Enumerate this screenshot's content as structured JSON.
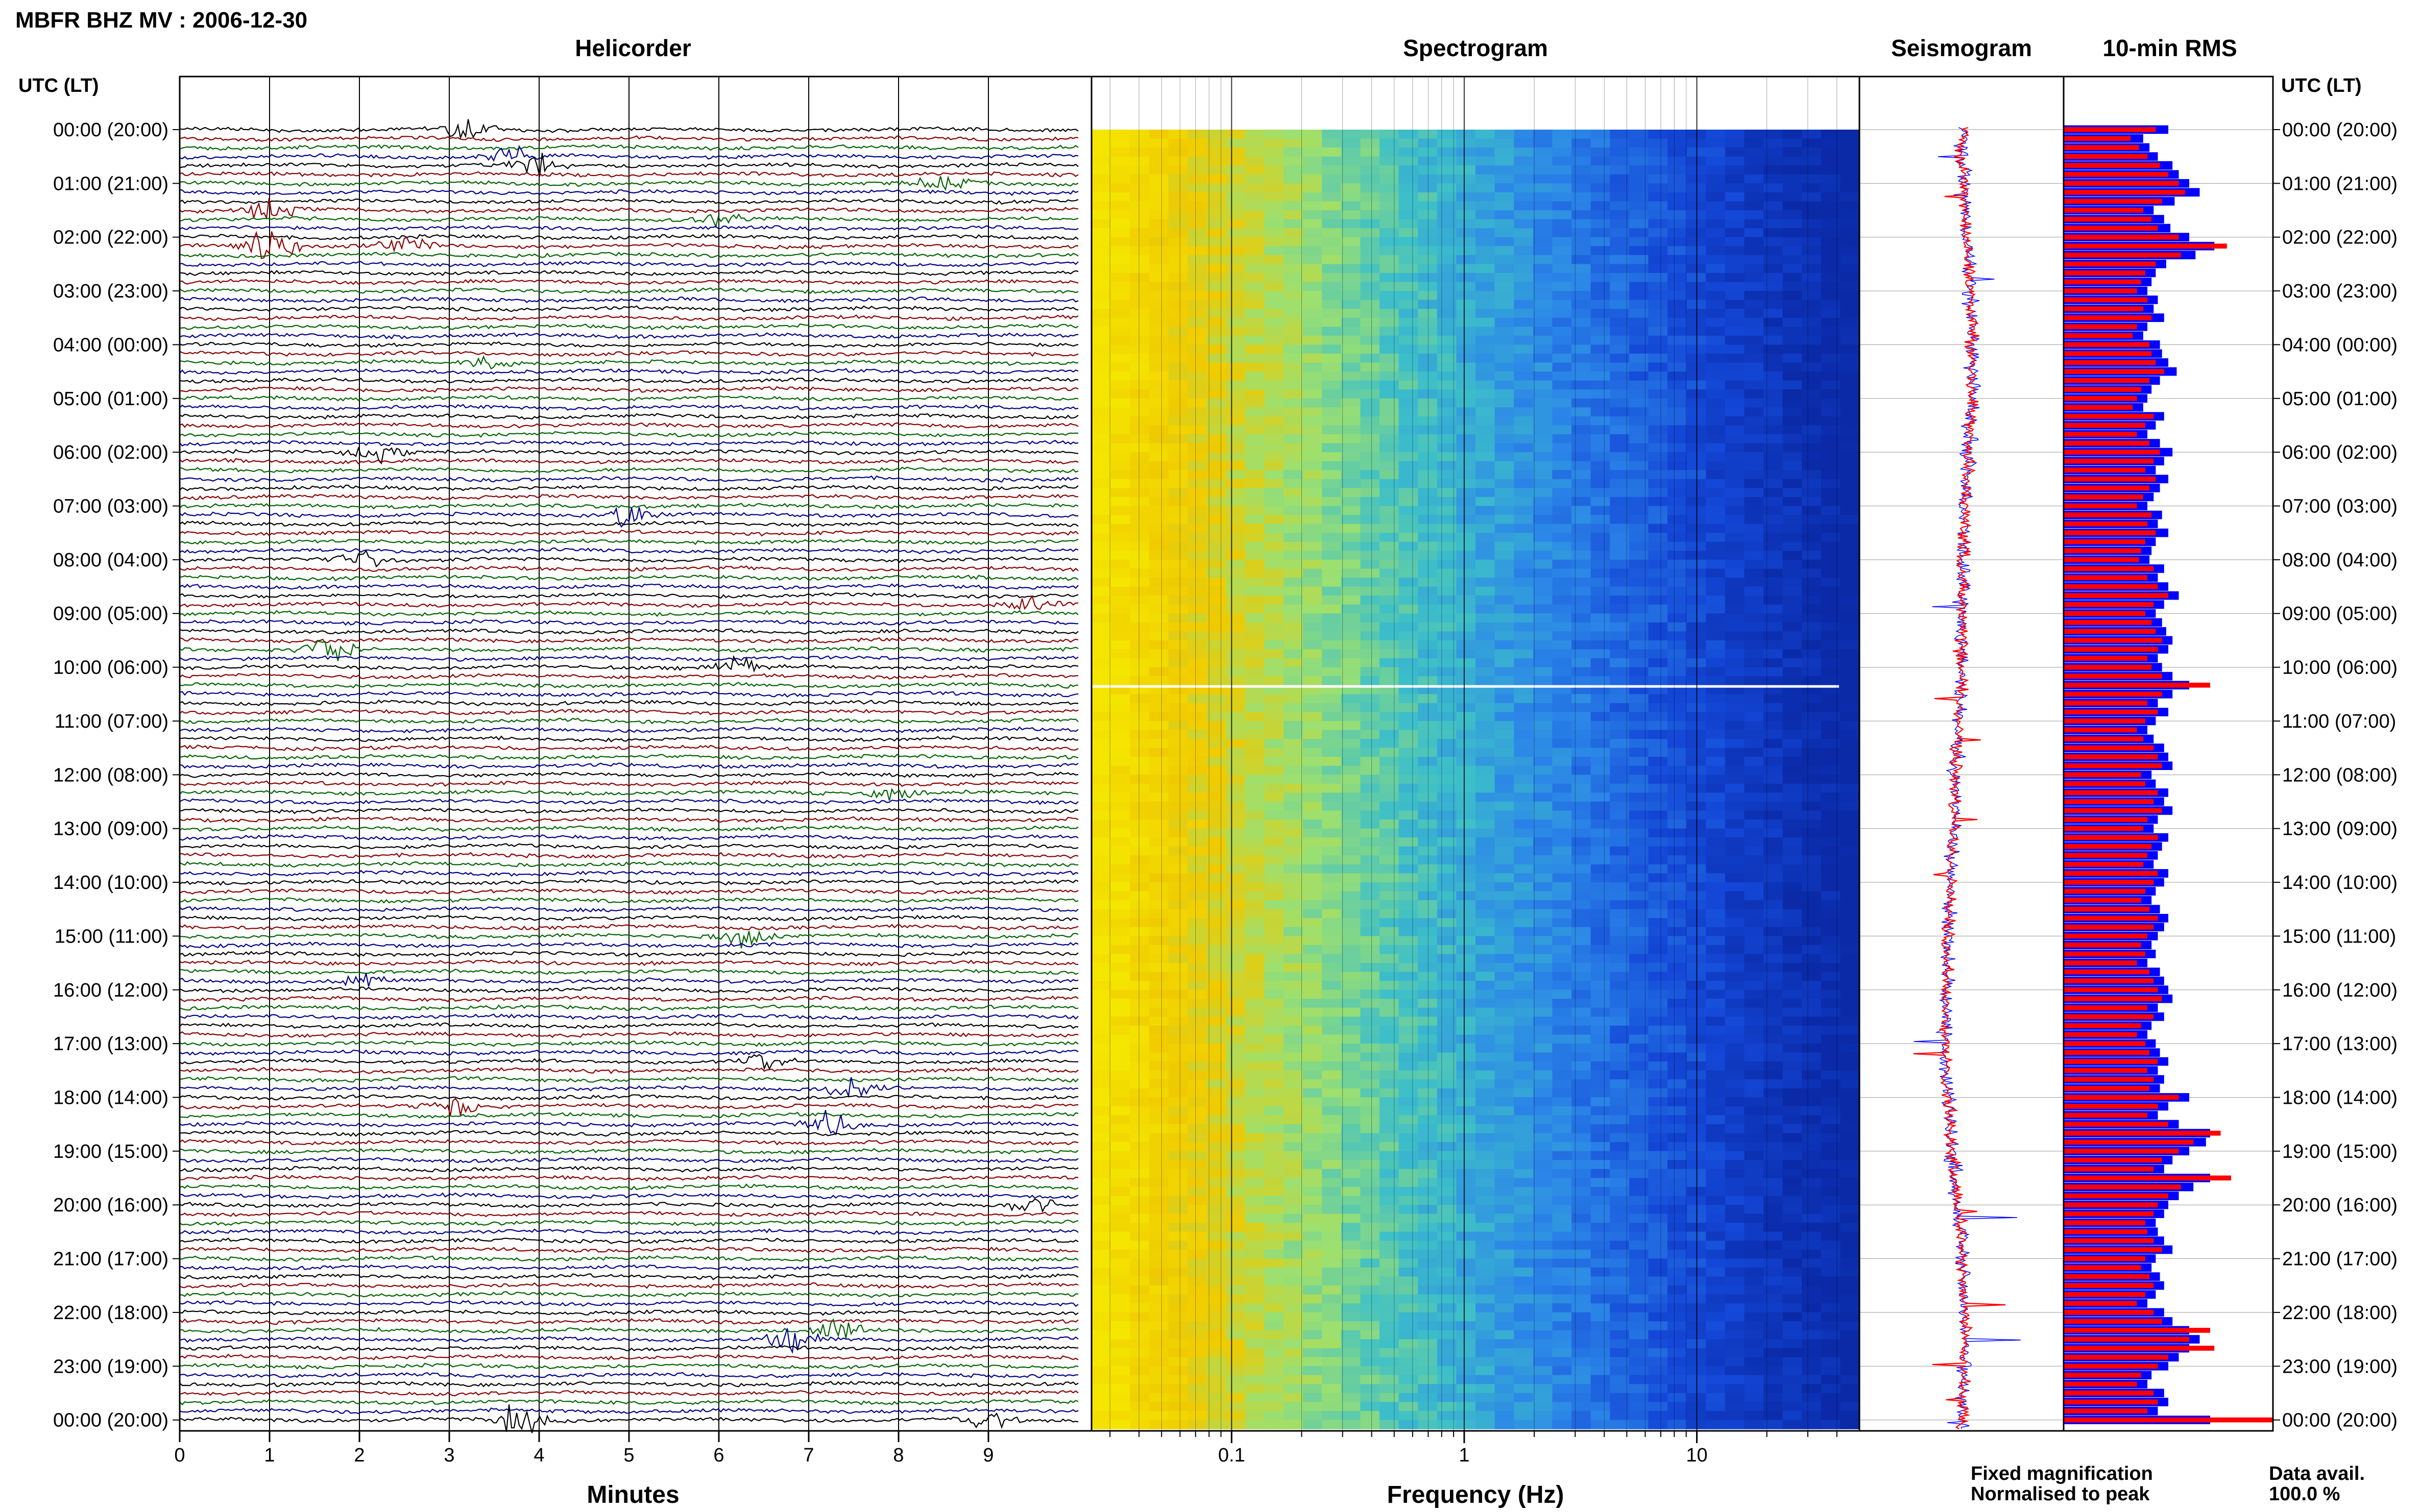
{
  "header": {
    "title": "MBFR BHZ MV : 2006-12-30",
    "left_axis_label": "UTC (LT)",
    "right_axis_label": "UTC (LT)"
  },
  "panels": {
    "helicorder": "Helicorder",
    "spectrogram": "Spectrogram",
    "seismogram": "Seismogram",
    "rms": "10-min RMS"
  },
  "time_labels": [
    "00:00 (20:00)",
    "01:00 (21:00)",
    "02:00 (22:00)",
    "03:00 (23:00)",
    "04:00 (00:00)",
    "05:00 (01:00)",
    "06:00 (02:00)",
    "07:00 (03:00)",
    "08:00 (04:00)",
    "09:00 (05:00)",
    "10:00 (06:00)",
    "11:00 (07:00)",
    "12:00 (08:00)",
    "13:00 (09:00)",
    "14:00 (10:00)",
    "15:00 (11:00)",
    "16:00 (12:00)",
    "17:00 (13:00)",
    "18:00 (14:00)",
    "19:00 (15:00)",
    "20:00 (16:00)",
    "21:00 (17:00)",
    "22:00 (18:00)",
    "23:00 (19:00)",
    "00:00 (20:00)"
  ],
  "legend": {
    "fixed": "Fixed magnification",
    "normalised": "Normalised to peak",
    "data_avail_label": "Data avail.",
    "data_avail_value": "100.0 %"
  },
  "colors": {
    "trace_black": "#000000",
    "trace_red": "#8b0000",
    "trace_blue": "#00008b",
    "trace_green": "#006400",
    "fixed": "#0000ff",
    "normalised": "#ff0000"
  },
  "chart_data": [
    {
      "type": "line",
      "name": "helicorder",
      "xlabel": "Minutes",
      "xticks": [
        "0",
        "1",
        "2",
        "3",
        "4",
        "5",
        "6",
        "7",
        "8",
        "9"
      ],
      "xlim": [
        0,
        10
      ],
      "rows": 145,
      "row_minutes": 10,
      "trace_color_cycle": [
        "trace_black",
        "trace_red",
        "trace_green",
        "trace_blue"
      ],
      "events": [
        {
          "row": 0,
          "minute": 3.2,
          "amp": 2.2
        },
        {
          "row": 3,
          "minute": 3.7,
          "amp": 1.5
        },
        {
          "row": 4,
          "minute": 4.0,
          "amp": 1.8
        },
        {
          "row": 6,
          "minute": 8.5,
          "amp": 1.5
        },
        {
          "row": 9,
          "minute": 1.0,
          "amp": 1.8
        },
        {
          "row": 10,
          "minute": 6.0,
          "amp": 1.2
        },
        {
          "row": 13,
          "minute": 1.0,
          "amp": 3.0
        },
        {
          "row": 13,
          "minute": 2.5,
          "amp": 1.4
        },
        {
          "row": 26,
          "minute": 3.5,
          "amp": 1.4
        },
        {
          "row": 36,
          "minute": 2.2,
          "amp": 1.3
        },
        {
          "row": 43,
          "minute": 5.0,
          "amp": 2.0
        },
        {
          "row": 48,
          "minute": 2.0,
          "amp": 1.6
        },
        {
          "row": 53,
          "minute": 9.5,
          "amp": 1.3
        },
        {
          "row": 58,
          "minute": 1.7,
          "amp": 2.6
        },
        {
          "row": 60,
          "minute": 6.2,
          "amp": 1.4
        },
        {
          "row": 74,
          "minute": 8.0,
          "amp": 1.2
        },
        {
          "row": 90,
          "minute": 6.3,
          "amp": 1.6
        },
        {
          "row": 95,
          "minute": 2.0,
          "amp": 1.3
        },
        {
          "row": 104,
          "minute": 6.5,
          "amp": 1.5
        },
        {
          "row": 107,
          "minute": 7.5,
          "amp": 2.3
        },
        {
          "row": 109,
          "minute": 3.0,
          "amp": 2.0
        },
        {
          "row": 111,
          "minute": 7.2,
          "amp": 2.0
        },
        {
          "row": 120,
          "minute": 9.5,
          "amp": 1.4
        },
        {
          "row": 134,
          "minute": 7.3,
          "amp": 2.4
        },
        {
          "row": 135,
          "minute": 6.8,
          "amp": 2.0
        },
        {
          "row": 144,
          "minute": 3.8,
          "amp": 3.0
        },
        {
          "row": 144,
          "minute": 9.0,
          "amp": 1.6
        }
      ]
    },
    {
      "type": "heatmap",
      "name": "spectrogram",
      "xlabel": "Frequency (Hz)",
      "xscale": "log",
      "xlim": [
        0.025,
        50
      ],
      "xticks": [
        0.1,
        1,
        10
      ],
      "xtick_labels": [
        "0.1",
        "1",
        "10"
      ],
      "rows": 145,
      "colormap": [
        "#f5e600",
        "#f0ca00",
        "#9ce070",
        "#3dbfc9",
        "#2b86e8",
        "#1448d8",
        "#0a2aa8"
      ],
      "gap_row": 62
    },
    {
      "type": "line",
      "name": "seismogram",
      "rows": 145,
      "series": [
        {
          "name": "Fixed magnification",
          "color": "fixed"
        },
        {
          "name": "Normalised to peak",
          "color": "normalised"
        }
      ],
      "center_offset": [
        0.5,
        0.52,
        0.55,
        0.55,
        0.52,
        0.5,
        0.5,
        0.47,
        0.45,
        0.43,
        0.42,
        0.45,
        0.5,
        0.52,
        0.5
      ]
    },
    {
      "type": "bar",
      "name": "10-min RMS",
      "orientation": "horizontal",
      "rows": 145,
      "series": [
        {
          "name": "Fixed magnification",
          "color": "fixed",
          "values": [
            50,
            38,
            41,
            45,
            52,
            55,
            60,
            65,
            53,
            43,
            48,
            51,
            60,
            72,
            63,
            49,
            44,
            42,
            40,
            45,
            43,
            48,
            40,
            38,
            46,
            47,
            50,
            54,
            46,
            42,
            40,
            38,
            48,
            44,
            40,
            46,
            52,
            48,
            44,
            50,
            46,
            43,
            40,
            47,
            45,
            50,
            44,
            42,
            41,
            48,
            45,
            50,
            55,
            48,
            44,
            47,
            49,
            52,
            50,
            45,
            47,
            52,
            60,
            52,
            45,
            50,
            44,
            40,
            43,
            48,
            50,
            52,
            42,
            44,
            50,
            48,
            52,
            45,
            43,
            50,
            47,
            45,
            43,
            50,
            48,
            44,
            42,
            46,
            50,
            48,
            45,
            42,
            44,
            40,
            46,
            48,
            50,
            52,
            45,
            48,
            42,
            40,
            44,
            46,
            50,
            45,
            48,
            46,
            60,
            50,
            45,
            55,
            70,
            68,
            60,
            52,
            48,
            70,
            62,
            55,
            50,
            48,
            44,
            45,
            48,
            52,
            44,
            42,
            46,
            48,
            44,
            40,
            48,
            52,
            60,
            65,
            60,
            55,
            50,
            42,
            40,
            48,
            50,
            45,
            70
          ]
        },
        {
          "name": "Normalised to peak",
          "color": "normalised",
          "values": [
            44,
            32,
            36,
            40,
            46,
            50,
            55,
            58,
            47,
            38,
            42,
            45,
            55,
            78,
            56,
            44,
            39,
            37,
            35,
            40,
            38,
            42,
            35,
            33,
            41,
            42,
            44,
            48,
            41,
            37,
            35,
            33,
            43,
            39,
            35,
            41,
            46,
            43,
            39,
            44,
            41,
            38,
            35,
            42,
            40,
            44,
            39,
            37,
            36,
            43,
            40,
            45,
            50,
            43,
            39,
            42,
            44,
            47,
            45,
            40,
            42,
            47,
            70,
            47,
            40,
            45,
            39,
            35,
            38,
            43,
            45,
            47,
            37,
            39,
            45,
            43,
            47,
            40,
            38,
            45,
            42,
            40,
            38,
            45,
            43,
            39,
            37,
            41,
            45,
            43,
            40,
            37,
            39,
            35,
            41,
            43,
            45,
            47,
            40,
            43,
            37,
            35,
            39,
            41,
            45,
            40,
            43,
            41,
            55,
            45,
            40,
            50,
            75,
            62,
            55,
            47,
            43,
            80,
            56,
            50,
            45,
            43,
            39,
            40,
            43,
            47,
            39,
            37,
            41,
            43,
            39,
            35,
            43,
            47,
            70,
            60,
            72,
            50,
            45,
            37,
            35,
            43,
            45,
            40,
            100
          ]
        }
      ]
    }
  ]
}
